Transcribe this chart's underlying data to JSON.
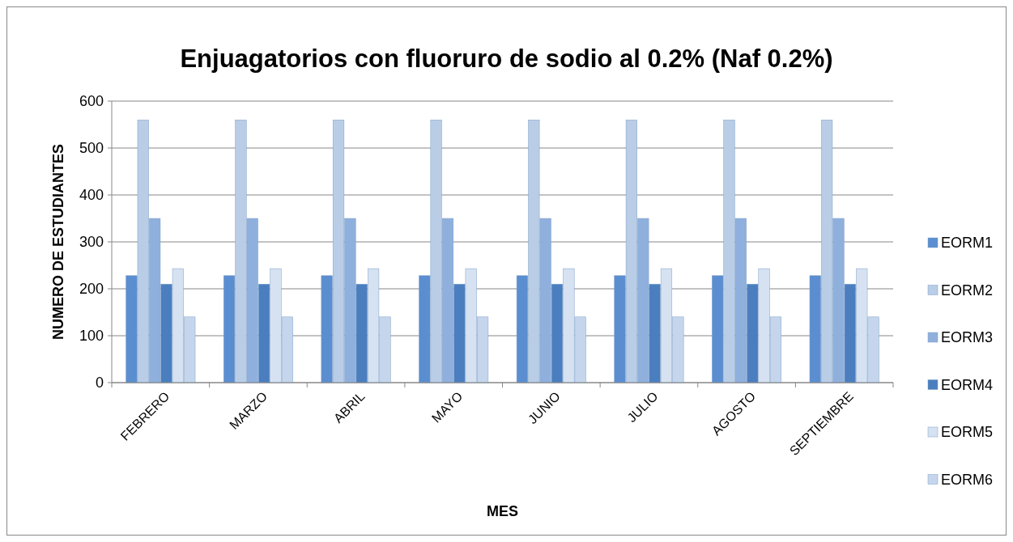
{
  "chart_data": {
    "type": "bar",
    "title": "Enjuagatorios con fluoruro de sodio al 0.2% (Naf 0.2%)",
    "xlabel": "MES",
    "ylabel": "NUMERO DE ESTUDIANTES",
    "categories": [
      "FEBRERO",
      "MARZO",
      "ABRIL",
      "MAYO",
      "JUNIO",
      "JULIO",
      "AGOSTO",
      "SEPTIEMBRE"
    ],
    "series": [
      {
        "name": "EORM1",
        "color": "#5b8ed0",
        "values": [
          228,
          228,
          228,
          228,
          228,
          228,
          228,
          228
        ]
      },
      {
        "name": "EORM2",
        "color": "#b9cde6",
        "values": [
          560,
          560,
          560,
          560,
          560,
          560,
          560,
          560
        ]
      },
      {
        "name": "EORM3",
        "color": "#8fb0dc",
        "values": [
          350,
          350,
          350,
          350,
          350,
          350,
          350,
          350
        ]
      },
      {
        "name": "EORM4",
        "color": "#4a7ebf",
        "values": [
          210,
          210,
          210,
          210,
          210,
          210,
          210,
          210
        ]
      },
      {
        "name": "EORM5",
        "color": "#d6e2f1",
        "values": [
          243,
          243,
          243,
          243,
          243,
          243,
          243,
          243
        ]
      },
      {
        "name": "EORM6",
        "color": "#c5d6ec",
        "values": [
          140,
          140,
          140,
          140,
          140,
          140,
          140,
          140
        ]
      }
    ],
    "ylim": [
      0,
      600
    ],
    "yticks": [
      0,
      100,
      200,
      300,
      400,
      500,
      600
    ],
    "grid": "y",
    "legend": "right"
  }
}
